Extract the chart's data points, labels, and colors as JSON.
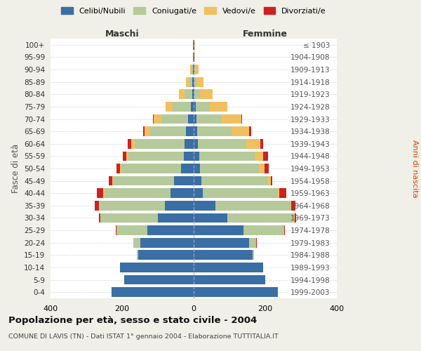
{
  "age_groups": [
    "0-4",
    "5-9",
    "10-14",
    "15-19",
    "20-24",
    "25-29",
    "30-34",
    "35-39",
    "40-44",
    "45-49",
    "50-54",
    "55-59",
    "60-64",
    "65-69",
    "70-74",
    "75-79",
    "80-84",
    "85-89",
    "90-94",
    "95-99",
    "100+"
  ],
  "birth_years": [
    "1999-2003",
    "1994-1998",
    "1989-1993",
    "1984-1988",
    "1979-1983",
    "1974-1978",
    "1969-1973",
    "1964-1968",
    "1959-1963",
    "1954-1958",
    "1949-1953",
    "1944-1948",
    "1939-1943",
    "1934-1938",
    "1929-1933",
    "1924-1928",
    "1919-1923",
    "1914-1918",
    "1909-1913",
    "1904-1908",
    "≤ 1903"
  ],
  "colors": {
    "celibi": "#3a6ea5",
    "coniugati": "#b5c99a",
    "vedovi": "#f0c060",
    "divorziati": "#cc2222"
  },
  "maschi": {
    "celibi": [
      230,
      195,
      205,
      155,
      150,
      130,
      100,
      80,
      65,
      55,
      35,
      28,
      25,
      22,
      16,
      8,
      4,
      3,
      2,
      1,
      1
    ],
    "coniugati": [
      0,
      0,
      0,
      3,
      18,
      85,
      160,
      185,
      185,
      170,
      165,
      155,
      140,
      100,
      75,
      50,
      22,
      8,
      2,
      0,
      0
    ],
    "vedovi": [
      0,
      0,
      0,
      0,
      0,
      0,
      0,
      0,
      2,
      3,
      5,
      5,
      10,
      15,
      20,
      20,
      15,
      10,
      5,
      1,
      1
    ],
    "divorziati": [
      0,
      0,
      0,
      0,
      0,
      3,
      5,
      12,
      18,
      10,
      10,
      10,
      10,
      5,
      2,
      0,
      0,
      0,
      0,
      0,
      0
    ]
  },
  "femmine": {
    "celibi": [
      235,
      200,
      195,
      165,
      155,
      140,
      95,
      60,
      25,
      22,
      18,
      15,
      12,
      10,
      8,
      5,
      2,
      2,
      2,
      1,
      1
    ],
    "coniugati": [
      0,
      0,
      0,
      3,
      20,
      110,
      185,
      210,
      210,
      185,
      165,
      155,
      135,
      95,
      70,
      40,
      15,
      5,
      2,
      0,
      0
    ],
    "vedovi": [
      0,
      0,
      0,
      0,
      0,
      2,
      2,
      2,
      5,
      8,
      15,
      25,
      40,
      50,
      55,
      50,
      35,
      20,
      10,
      3,
      2
    ],
    "divorziati": [
      0,
      0,
      0,
      0,
      1,
      2,
      5,
      12,
      18,
      5,
      12,
      12,
      8,
      5,
      3,
      0,
      0,
      0,
      0,
      0,
      0
    ]
  },
  "xlim": 400,
  "title": "Popolazione per età, sesso e stato civile - 2004",
  "subtitle": "COMUNE DI LAVIS (TN) - Dati ISTAT 1° gennaio 2004 - Elaborazione TUTTITALIA.IT",
  "ylabel_left": "Fasce di età",
  "ylabel_right": "Anni di nascita",
  "legend_labels": [
    "Celibi/Nubili",
    "Coniugati/e",
    "Vedovi/e",
    "Divorziati/e"
  ],
  "maschi_label": "Maschi",
  "femmine_label": "Femmine",
  "background_color": "#f0efe8",
  "plot_bg": "#ffffff"
}
